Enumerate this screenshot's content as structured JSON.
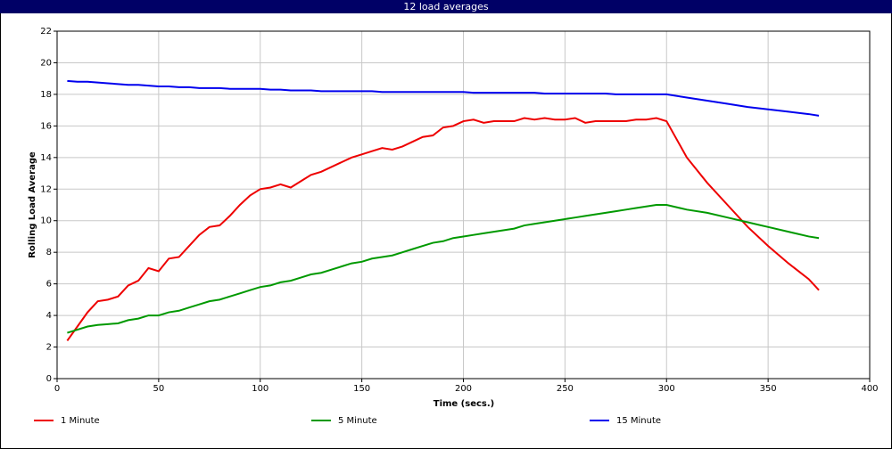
{
  "chart_data": {
    "type": "line",
    "title": "12 load averages",
    "x_label": "Time (secs.)",
    "y_label": "Rolling Load Average",
    "x": [
      5,
      10,
      15,
      20,
      25,
      30,
      35,
      40,
      45,
      50,
      55,
      60,
      65,
      70,
      75,
      80,
      85,
      90,
      95,
      100,
      105,
      110,
      115,
      120,
      125,
      130,
      135,
      140,
      145,
      150,
      155,
      160,
      165,
      170,
      175,
      180,
      185,
      190,
      195,
      200,
      205,
      210,
      215,
      220,
      225,
      230,
      235,
      240,
      245,
      250,
      255,
      260,
      265,
      270,
      275,
      280,
      285,
      290,
      295,
      300,
      310,
      320,
      330,
      340,
      350,
      360,
      370,
      375
    ],
    "series": [
      {
        "name": "1 Minute",
        "color": "#ee0000",
        "values": [
          2.4,
          3.3,
          4.2,
          4.9,
          5.0,
          5.2,
          5.9,
          6.2,
          7.0,
          6.8,
          7.6,
          7.7,
          8.4,
          9.1,
          9.6,
          9.7,
          10.3,
          11.0,
          11.6,
          12.0,
          12.1,
          12.3,
          12.1,
          12.5,
          12.9,
          13.1,
          13.4,
          13.7,
          14.0,
          14.2,
          14.4,
          14.6,
          14.5,
          14.7,
          15.0,
          15.3,
          15.4,
          15.9,
          16.0,
          16.3,
          16.4,
          16.2,
          16.3,
          16.3,
          16.3,
          16.5,
          16.4,
          16.5,
          16.4,
          16.4,
          16.5,
          16.2,
          16.3,
          16.3,
          16.3,
          16.3,
          16.4,
          16.4,
          16.5,
          16.3,
          14.0,
          12.4,
          11.0,
          9.6,
          8.4,
          7.3,
          6.3,
          5.6
        ]
      },
      {
        "name": "5 Minute",
        "color": "#009900",
        "values": [
          2.9,
          3.1,
          3.3,
          3.4,
          3.45,
          3.5,
          3.7,
          3.8,
          4.0,
          4.0,
          4.2,
          4.3,
          4.5,
          4.7,
          4.9,
          5.0,
          5.2,
          5.4,
          5.6,
          5.8,
          5.9,
          6.1,
          6.2,
          6.4,
          6.6,
          6.7,
          6.9,
          7.1,
          7.3,
          7.4,
          7.6,
          7.7,
          7.8,
          8.0,
          8.2,
          8.4,
          8.6,
          8.7,
          8.9,
          9.0,
          9.1,
          9.2,
          9.3,
          9.4,
          9.5,
          9.7,
          9.8,
          9.9,
          10.0,
          10.1,
          10.2,
          10.3,
          10.4,
          10.5,
          10.6,
          10.7,
          10.8,
          10.9,
          11.0,
          11.0,
          10.7,
          10.5,
          10.2,
          9.9,
          9.6,
          9.3,
          9.0,
          8.9
        ]
      },
      {
        "name": "15 Minute",
        "color": "#0000ee",
        "values": [
          18.85,
          18.8,
          18.8,
          18.75,
          18.7,
          18.65,
          18.6,
          18.6,
          18.55,
          18.5,
          18.5,
          18.45,
          18.45,
          18.4,
          18.4,
          18.4,
          18.35,
          18.35,
          18.35,
          18.35,
          18.3,
          18.3,
          18.25,
          18.25,
          18.25,
          18.2,
          18.2,
          18.2,
          18.2,
          18.2,
          18.2,
          18.15,
          18.15,
          18.15,
          18.15,
          18.15,
          18.15,
          18.15,
          18.15,
          18.15,
          18.1,
          18.1,
          18.1,
          18.1,
          18.1,
          18.1,
          18.1,
          18.05,
          18.05,
          18.05,
          18.05,
          18.05,
          18.05,
          18.05,
          18.0,
          18.0,
          18.0,
          18.0,
          18.0,
          18.0,
          17.8,
          17.6,
          17.4,
          17.2,
          17.05,
          16.9,
          16.75,
          16.65
        ]
      }
    ],
    "xlim": [
      0,
      400
    ],
    "xticks": [
      0,
      50,
      100,
      150,
      200,
      250,
      300,
      350,
      400
    ],
    "ylim": [
      0,
      22
    ],
    "yticks": [
      0,
      2,
      4,
      6,
      8,
      10,
      12,
      14,
      16,
      18,
      20,
      22
    ],
    "grid": true
  }
}
